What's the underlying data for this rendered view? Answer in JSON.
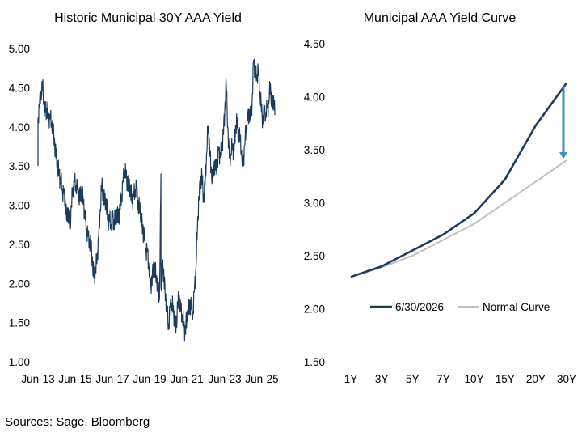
{
  "source_note": "Sources: Sage, Bloomberg",
  "colors": {
    "navy": "#1f3b5c",
    "gray": "#bfbfbf",
    "arrow": "#3a8fc1"
  },
  "chart_data": [
    {
      "type": "line",
      "title": "Historic Municipal 30Y AAA Yield",
      "xlabel": "",
      "ylabel": "",
      "ylim": [
        1.0,
        5.0
      ],
      "xlim": [
        "2013-06",
        "2026-06"
      ],
      "y_ticks": [
        "1.00",
        "1.50",
        "2.00",
        "2.50",
        "3.00",
        "3.50",
        "4.00",
        "4.50",
        "5.00"
      ],
      "x_ticks": [
        "Jun-13",
        "Jun-15",
        "Jun-17",
        "Jun-19",
        "Jun-21",
        "Jun-23",
        "Jun-25"
      ],
      "grid": false,
      "series": [
        {
          "color": "#1f3b5c",
          "points": [
            [
              "2013-06",
              3.5
            ],
            [
              "2013-06",
              4.1
            ],
            [
              "2013-07",
              4.3
            ],
            [
              "2013-08",
              4.45
            ],
            [
              "2013-09",
              4.5
            ],
            [
              "2013-10",
              4.3
            ],
            [
              "2013-11",
              4.2
            ],
            [
              "2013-12",
              4.2
            ],
            [
              "2014-01",
              4.15
            ],
            [
              "2014-02",
              4.1
            ],
            [
              "2014-03",
              4.05
            ],
            [
              "2014-04",
              3.95
            ],
            [
              "2014-05",
              3.8
            ],
            [
              "2014-06",
              3.6
            ],
            [
              "2014-07",
              3.5
            ],
            [
              "2014-08",
              3.4
            ],
            [
              "2014-09",
              3.3
            ],
            [
              "2014-10",
              3.2
            ],
            [
              "2014-11",
              3.15
            ],
            [
              "2014-12",
              3.05
            ],
            [
              "2015-01",
              2.8
            ],
            [
              "2015-02",
              2.95
            ],
            [
              "2015-03",
              2.7
            ],
            [
              "2015-04",
              3.0
            ],
            [
              "2015-05",
              3.2
            ],
            [
              "2015-06",
              3.3
            ],
            [
              "2015-07",
              3.25
            ],
            [
              "2015-08",
              3.2
            ],
            [
              "2015-09",
              3.15
            ],
            [
              "2015-10",
              3.1
            ],
            [
              "2015-11",
              3.15
            ],
            [
              "2015-12",
              3.05
            ],
            [
              "2016-01",
              2.85
            ],
            [
              "2016-02",
              2.7
            ],
            [
              "2016-03",
              2.6
            ],
            [
              "2016-04",
              2.55
            ],
            [
              "2016-05",
              2.45
            ],
            [
              "2016-06",
              2.25
            ],
            [
              "2016-07",
              2.1
            ],
            [
              "2016-08",
              2.15
            ],
            [
              "2016-09",
              2.35
            ],
            [
              "2016-10",
              2.6
            ],
            [
              "2016-11",
              2.95
            ],
            [
              "2016-12",
              3.25
            ],
            [
              "2017-01",
              3.15
            ],
            [
              "2017-02",
              3.05
            ],
            [
              "2017-03",
              3.0
            ],
            [
              "2017-04",
              2.85
            ],
            [
              "2017-05",
              2.8
            ],
            [
              "2017-06",
              2.75
            ],
            [
              "2017-07",
              2.85
            ],
            [
              "2017-08",
              2.8
            ],
            [
              "2017-09",
              2.8
            ],
            [
              "2017-10",
              2.9
            ],
            [
              "2017-11",
              2.85
            ],
            [
              "2017-12",
              2.95
            ],
            [
              "2018-01",
              3.1
            ],
            [
              "2018-02",
              3.3
            ],
            [
              "2018-03",
              3.45
            ],
            [
              "2018-04",
              3.35
            ],
            [
              "2018-05",
              3.3
            ],
            [
              "2018-06",
              3.25
            ],
            [
              "2018-07",
              3.15
            ],
            [
              "2018-08",
              3.1
            ],
            [
              "2018-09",
              3.1
            ],
            [
              "2018-10",
              3.2
            ],
            [
              "2018-11",
              3.2
            ],
            [
              "2018-12",
              3.0
            ],
            [
              "2019-01",
              2.95
            ],
            [
              "2019-02",
              2.85
            ],
            [
              "2019-03",
              2.7
            ],
            [
              "2019-04",
              2.6
            ],
            [
              "2019-05",
              2.45
            ],
            [
              "2019-06",
              2.4
            ],
            [
              "2019-07",
              2.25
            ],
            [
              "2019-08",
              1.95
            ],
            [
              "2019-09",
              2.05
            ],
            [
              "2019-10",
              2.2
            ],
            [
              "2019-11",
              2.15
            ],
            [
              "2019-12",
              2.1
            ],
            [
              "2020-01",
              1.95
            ],
            [
              "2020-02",
              1.8
            ],
            [
              "2020-03",
              3.4
            ],
            [
              "2020-03",
              1.95
            ],
            [
              "2020-04",
              2.25
            ],
            [
              "2020-05",
              2.05
            ],
            [
              "2020-06",
              1.85
            ],
            [
              "2020-07",
              1.65
            ],
            [
              "2020-08",
              1.45
            ],
            [
              "2020-09",
              1.7
            ],
            [
              "2020-10",
              1.75
            ],
            [
              "2020-11",
              1.65
            ],
            [
              "2020-12",
              1.55
            ],
            [
              "2021-01",
              1.45
            ],
            [
              "2021-02",
              1.7
            ],
            [
              "2021-03",
              1.85
            ],
            [
              "2021-04",
              1.65
            ],
            [
              "2021-05",
              1.6
            ],
            [
              "2021-06",
              1.45
            ],
            [
              "2021-07",
              1.4
            ],
            [
              "2021-08",
              1.55
            ],
            [
              "2021-09",
              1.65
            ],
            [
              "2021-10",
              1.75
            ],
            [
              "2021-11",
              1.7
            ],
            [
              "2021-12",
              1.6
            ],
            [
              "2022-01",
              1.9
            ],
            [
              "2022-02",
              2.2
            ],
            [
              "2022-03",
              2.7
            ],
            [
              "2022-04",
              3.1
            ],
            [
              "2022-05",
              3.3
            ],
            [
              "2022-06",
              3.35
            ],
            [
              "2022-07",
              3.1
            ],
            [
              "2022-08",
              3.25
            ],
            [
              "2022-09",
              3.65
            ],
            [
              "2022-10",
              4.0
            ],
            [
              "2022-11",
              3.75
            ],
            [
              "2022-12",
              3.45
            ],
            [
              "2023-01",
              3.3
            ],
            [
              "2023-02",
              3.55
            ],
            [
              "2023-03",
              3.45
            ],
            [
              "2023-04",
              3.5
            ],
            [
              "2023-05",
              3.7
            ],
            [
              "2023-06",
              3.65
            ],
            [
              "2023-07",
              3.7
            ],
            [
              "2023-08",
              3.9
            ],
            [
              "2023-09",
              4.2
            ],
            [
              "2023-10",
              4.55
            ],
            [
              "2023-11",
              4.0
            ],
            [
              "2023-12",
              3.6
            ],
            [
              "2024-01",
              3.65
            ],
            [
              "2024-02",
              3.75
            ],
            [
              "2024-03",
              3.7
            ],
            [
              "2024-04",
              3.95
            ],
            [
              "2024-05",
              4.05
            ],
            [
              "2024-06",
              3.95
            ],
            [
              "2024-07",
              3.85
            ],
            [
              "2024-08",
              3.7
            ],
            [
              "2024-09",
              3.5
            ],
            [
              "2024-10",
              3.75
            ],
            [
              "2024-11",
              3.95
            ],
            [
              "2024-12",
              4.1
            ],
            [
              "2025-01",
              4.2
            ],
            [
              "2025-02",
              4.1
            ],
            [
              "2025-03",
              4.3
            ],
            [
              "2025-04",
              4.85
            ],
            [
              "2025-05",
              4.7
            ],
            [
              "2025-06",
              4.6
            ],
            [
              "2025-07",
              4.75
            ],
            [
              "2025-08",
              4.45
            ],
            [
              "2025-09",
              4.25
            ],
            [
              "2025-10",
              4.1
            ],
            [
              "2025-11",
              4.2
            ],
            [
              "2025-12",
              4.15
            ],
            [
              "2026-01",
              4.25
            ],
            [
              "2026-02",
              4.3
            ],
            [
              "2026-03",
              4.55
            ],
            [
              "2026-04",
              4.25
            ],
            [
              "2026-05",
              4.4
            ],
            [
              "2026-06",
              4.15
            ]
          ]
        }
      ]
    },
    {
      "type": "line",
      "title": "Municipal AAA Yield Curve",
      "xlabel": "",
      "ylabel": "",
      "ylim": [
        1.5,
        4.5
      ],
      "y_ticks": [
        "1.50",
        "2.00",
        "2.50",
        "3.00",
        "3.50",
        "4.00",
        "4.50"
      ],
      "categories": [
        "1Y",
        "3Y",
        "5Y",
        "7Y",
        "10Y",
        "15Y",
        "20Y",
        "30Y"
      ],
      "grid": false,
      "legend": "inside-lower-center",
      "series": [
        {
          "name": "6/30/2026",
          "color": "#1f3b5c",
          "values": [
            2.3,
            2.4,
            2.55,
            2.7,
            2.9,
            3.22,
            3.73,
            4.13
          ]
        },
        {
          "name": "Normal Curve",
          "color": "#bfbfbf",
          "values": [
            2.3,
            2.39,
            2.5,
            2.65,
            2.8,
            3.0,
            3.2,
            3.4
          ]
        }
      ],
      "annotations": [
        {
          "type": "arrow",
          "category": "30Y",
          "from": 4.13,
          "to": 3.4,
          "color": "#3a8fc1"
        }
      ]
    }
  ]
}
